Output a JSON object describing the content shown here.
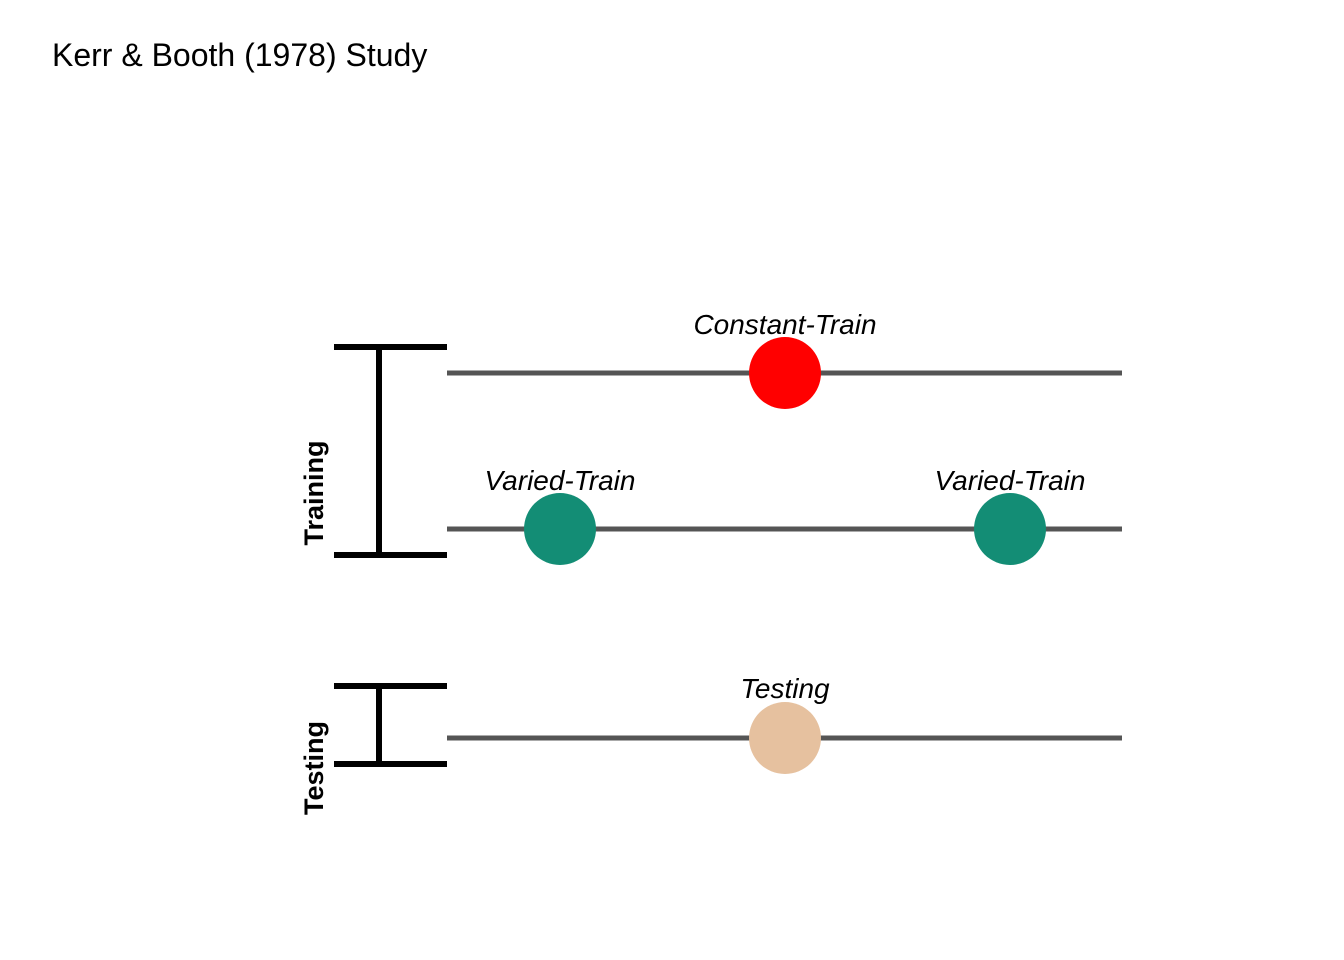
{
  "title": "Kerr & Booth (1978) Study",
  "colors": {
    "track": "#555555",
    "constant": "#ff0000",
    "varied": "#138d75",
    "testing": "#e6c19f"
  },
  "brackets": [
    {
      "id": "training",
      "label": "Training"
    },
    {
      "id": "testing",
      "label": "Testing"
    }
  ],
  "rows": [
    {
      "id": "constant",
      "points": [
        {
          "label": "Constant-Train",
          "color": "#ff0000"
        }
      ]
    },
    {
      "id": "varied",
      "points": [
        {
          "label": "Varied-Train",
          "color": "#138d75"
        },
        {
          "label": "Varied-Train",
          "color": "#138d75"
        }
      ]
    },
    {
      "id": "testing",
      "points": [
        {
          "label": "Testing",
          "color": "#e6c19f"
        }
      ]
    }
  ]
}
